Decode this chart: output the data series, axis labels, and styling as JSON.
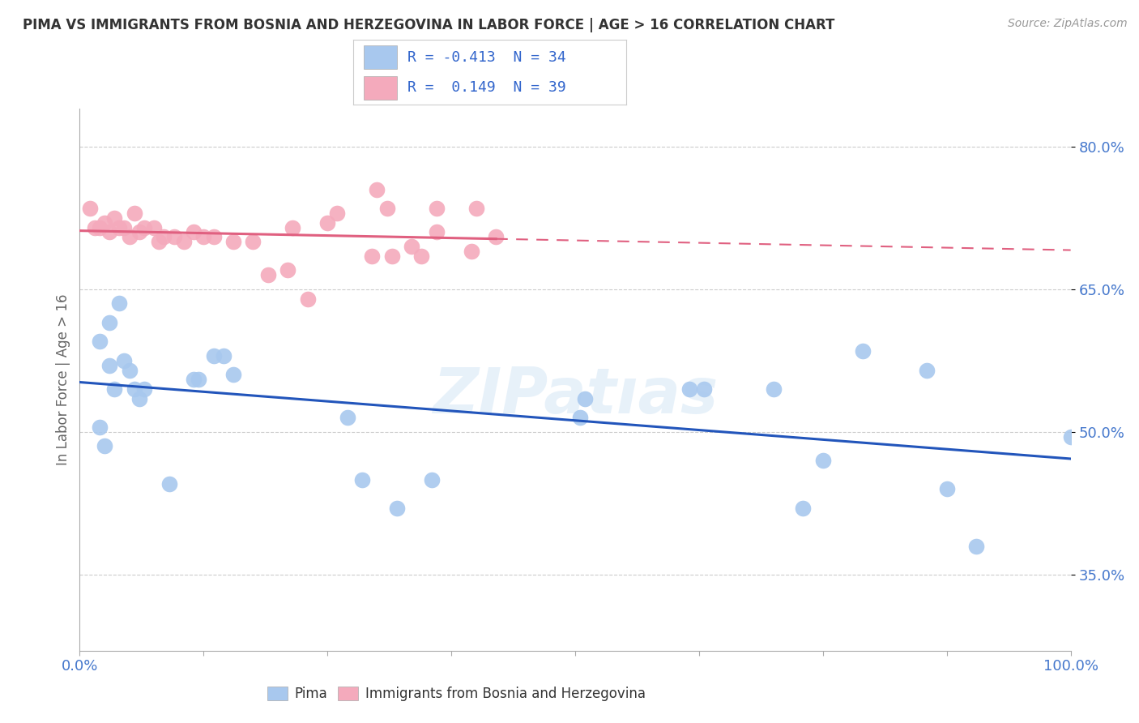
{
  "title": "PIMA VS IMMIGRANTS FROM BOSNIA AND HERZEGOVINA IN LABOR FORCE | AGE > 16 CORRELATION CHART",
  "source": "Source: ZipAtlas.com",
  "ylabel": "In Labor Force | Age > 16",
  "xlim": [
    0.0,
    1.0
  ],
  "ylim": [
    0.27,
    0.84
  ],
  "yticks": [
    0.35,
    0.5,
    0.65,
    0.8
  ],
  "ytick_labels": [
    "35.0%",
    "50.0%",
    "65.0%",
    "80.0%"
  ],
  "xticks": [
    0.0,
    0.125,
    0.25,
    0.375,
    0.5,
    0.625,
    0.75,
    0.875,
    1.0
  ],
  "xtick_labels": [
    "0.0%",
    "",
    "",
    "",
    "",
    "",
    "",
    "",
    "100.0%"
  ],
  "pima_R": -0.413,
  "pima_N": 34,
  "bosnia_R": 0.149,
  "bosnia_N": 39,
  "blue_color": "#A8C8EE",
  "pink_color": "#F4AABC",
  "blue_line_color": "#2255BB",
  "pink_line_color": "#E06080",
  "background_color": "#FFFFFF",
  "grid_color": "#CCCCCC",
  "pima_points_x": [
    0.02,
    0.02,
    0.025,
    0.03,
    0.03,
    0.035,
    0.04,
    0.045,
    0.05,
    0.055,
    0.06,
    0.065,
    0.09,
    0.115,
    0.12,
    0.135,
    0.145,
    0.155,
    0.27,
    0.285,
    0.32,
    0.355,
    0.505,
    0.51,
    0.615,
    0.63,
    0.7,
    0.73,
    0.75,
    0.79,
    0.855,
    0.875,
    0.905,
    1.0
  ],
  "pima_points_y": [
    0.595,
    0.505,
    0.485,
    0.615,
    0.57,
    0.545,
    0.635,
    0.575,
    0.565,
    0.545,
    0.535,
    0.545,
    0.445,
    0.555,
    0.555,
    0.58,
    0.58,
    0.56,
    0.515,
    0.45,
    0.42,
    0.45,
    0.515,
    0.535,
    0.545,
    0.545,
    0.545,
    0.42,
    0.47,
    0.585,
    0.565,
    0.44,
    0.38,
    0.495
  ],
  "bosnia_points_x": [
    0.01,
    0.015,
    0.02,
    0.025,
    0.03,
    0.035,
    0.04,
    0.045,
    0.05,
    0.055,
    0.06,
    0.065,
    0.075,
    0.08,
    0.085,
    0.095,
    0.105,
    0.115,
    0.125,
    0.135,
    0.155,
    0.175,
    0.215,
    0.295,
    0.315,
    0.335,
    0.345,
    0.36,
    0.395,
    0.42,
    0.21,
    0.19,
    0.23,
    0.25,
    0.26,
    0.3,
    0.31,
    0.36,
    0.4
  ],
  "bosnia_points_y": [
    0.735,
    0.715,
    0.715,
    0.72,
    0.71,
    0.725,
    0.715,
    0.715,
    0.705,
    0.73,
    0.71,
    0.715,
    0.715,
    0.7,
    0.705,
    0.705,
    0.7,
    0.71,
    0.705,
    0.705,
    0.7,
    0.7,
    0.715,
    0.685,
    0.685,
    0.695,
    0.685,
    0.71,
    0.69,
    0.705,
    0.67,
    0.665,
    0.64,
    0.72,
    0.73,
    0.755,
    0.735,
    0.735,
    0.735
  ]
}
